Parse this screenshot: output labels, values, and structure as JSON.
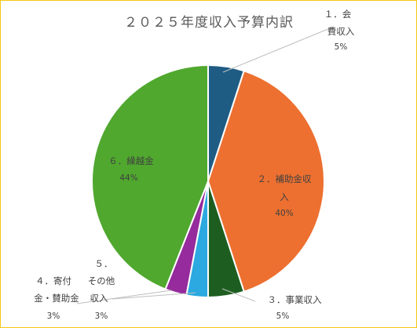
{
  "chart_data": {
    "type": "pie",
    "title": "２０２５年度収入予算内訳",
    "slices": [
      {
        "label": "１．会費収入",
        "lines": [
          "１．会",
          "費収入"
        ],
        "value": 5,
        "percent_label": "5%",
        "color": "#1f5c84"
      },
      {
        "label": "２．補助金収入",
        "lines": [
          "２．補助金収",
          "入"
        ],
        "value": 40,
        "percent_label": "40%",
        "color": "#ed7030"
      },
      {
        "label": "３．事業収入",
        "lines": [
          "３．事業収入"
        ],
        "value": 5,
        "percent_label": "5%",
        "color": "#1d5e20"
      },
      {
        "label": "５．その他収入",
        "lines": [
          "５．",
          "その他",
          "収入"
        ],
        "value": 3,
        "percent_label": "3%",
        "color": "#2ba9e0"
      },
      {
        "label": "４．寄付金・賛助金",
        "lines": [
          "４．寄付",
          "金・賛助金"
        ],
        "value": 3,
        "percent_label": "3%",
        "color": "#952b9c"
      },
      {
        "label": "６．繰越金",
        "lines": [
          "６．繰越金"
        ],
        "value": 44,
        "percent_label": "44%",
        "color": "#50a82f"
      }
    ]
  }
}
